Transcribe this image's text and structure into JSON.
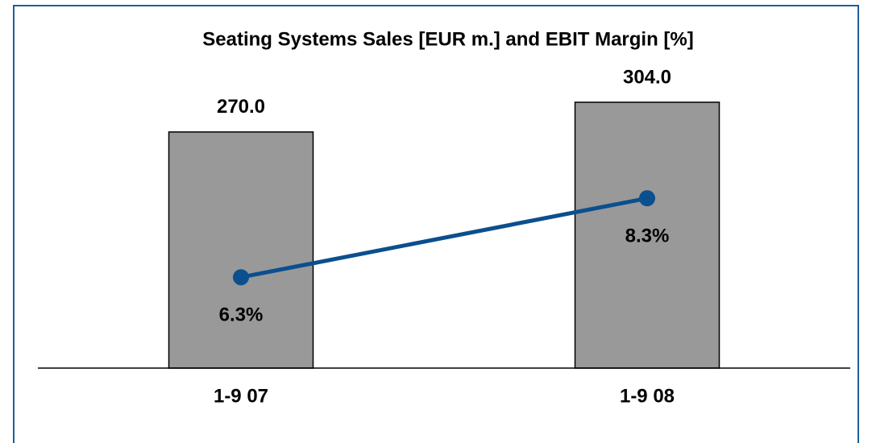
{
  "chart_data": {
    "type": "bar_line",
    "title": "Seating Systems Sales [EUR m.] and EBIT Margin [%]",
    "categories": [
      "1-9 07",
      "1-9 08"
    ],
    "series": [
      {
        "type": "bar",
        "axis": "y",
        "color": "#999999",
        "values": [
          270.0,
          304.0
        ],
        "value_labels": [
          "270.0",
          "304.0"
        ]
      },
      {
        "type": "line",
        "axis": "y2",
        "color": "#0b4f8e",
        "values": [
          6.3,
          8.3
        ],
        "value_labels": [
          "6.3%",
          "8.3%"
        ]
      }
    ],
    "ylim": [
      0,
      350
    ],
    "y2lim": [
      4,
      11.75
    ]
  }
}
